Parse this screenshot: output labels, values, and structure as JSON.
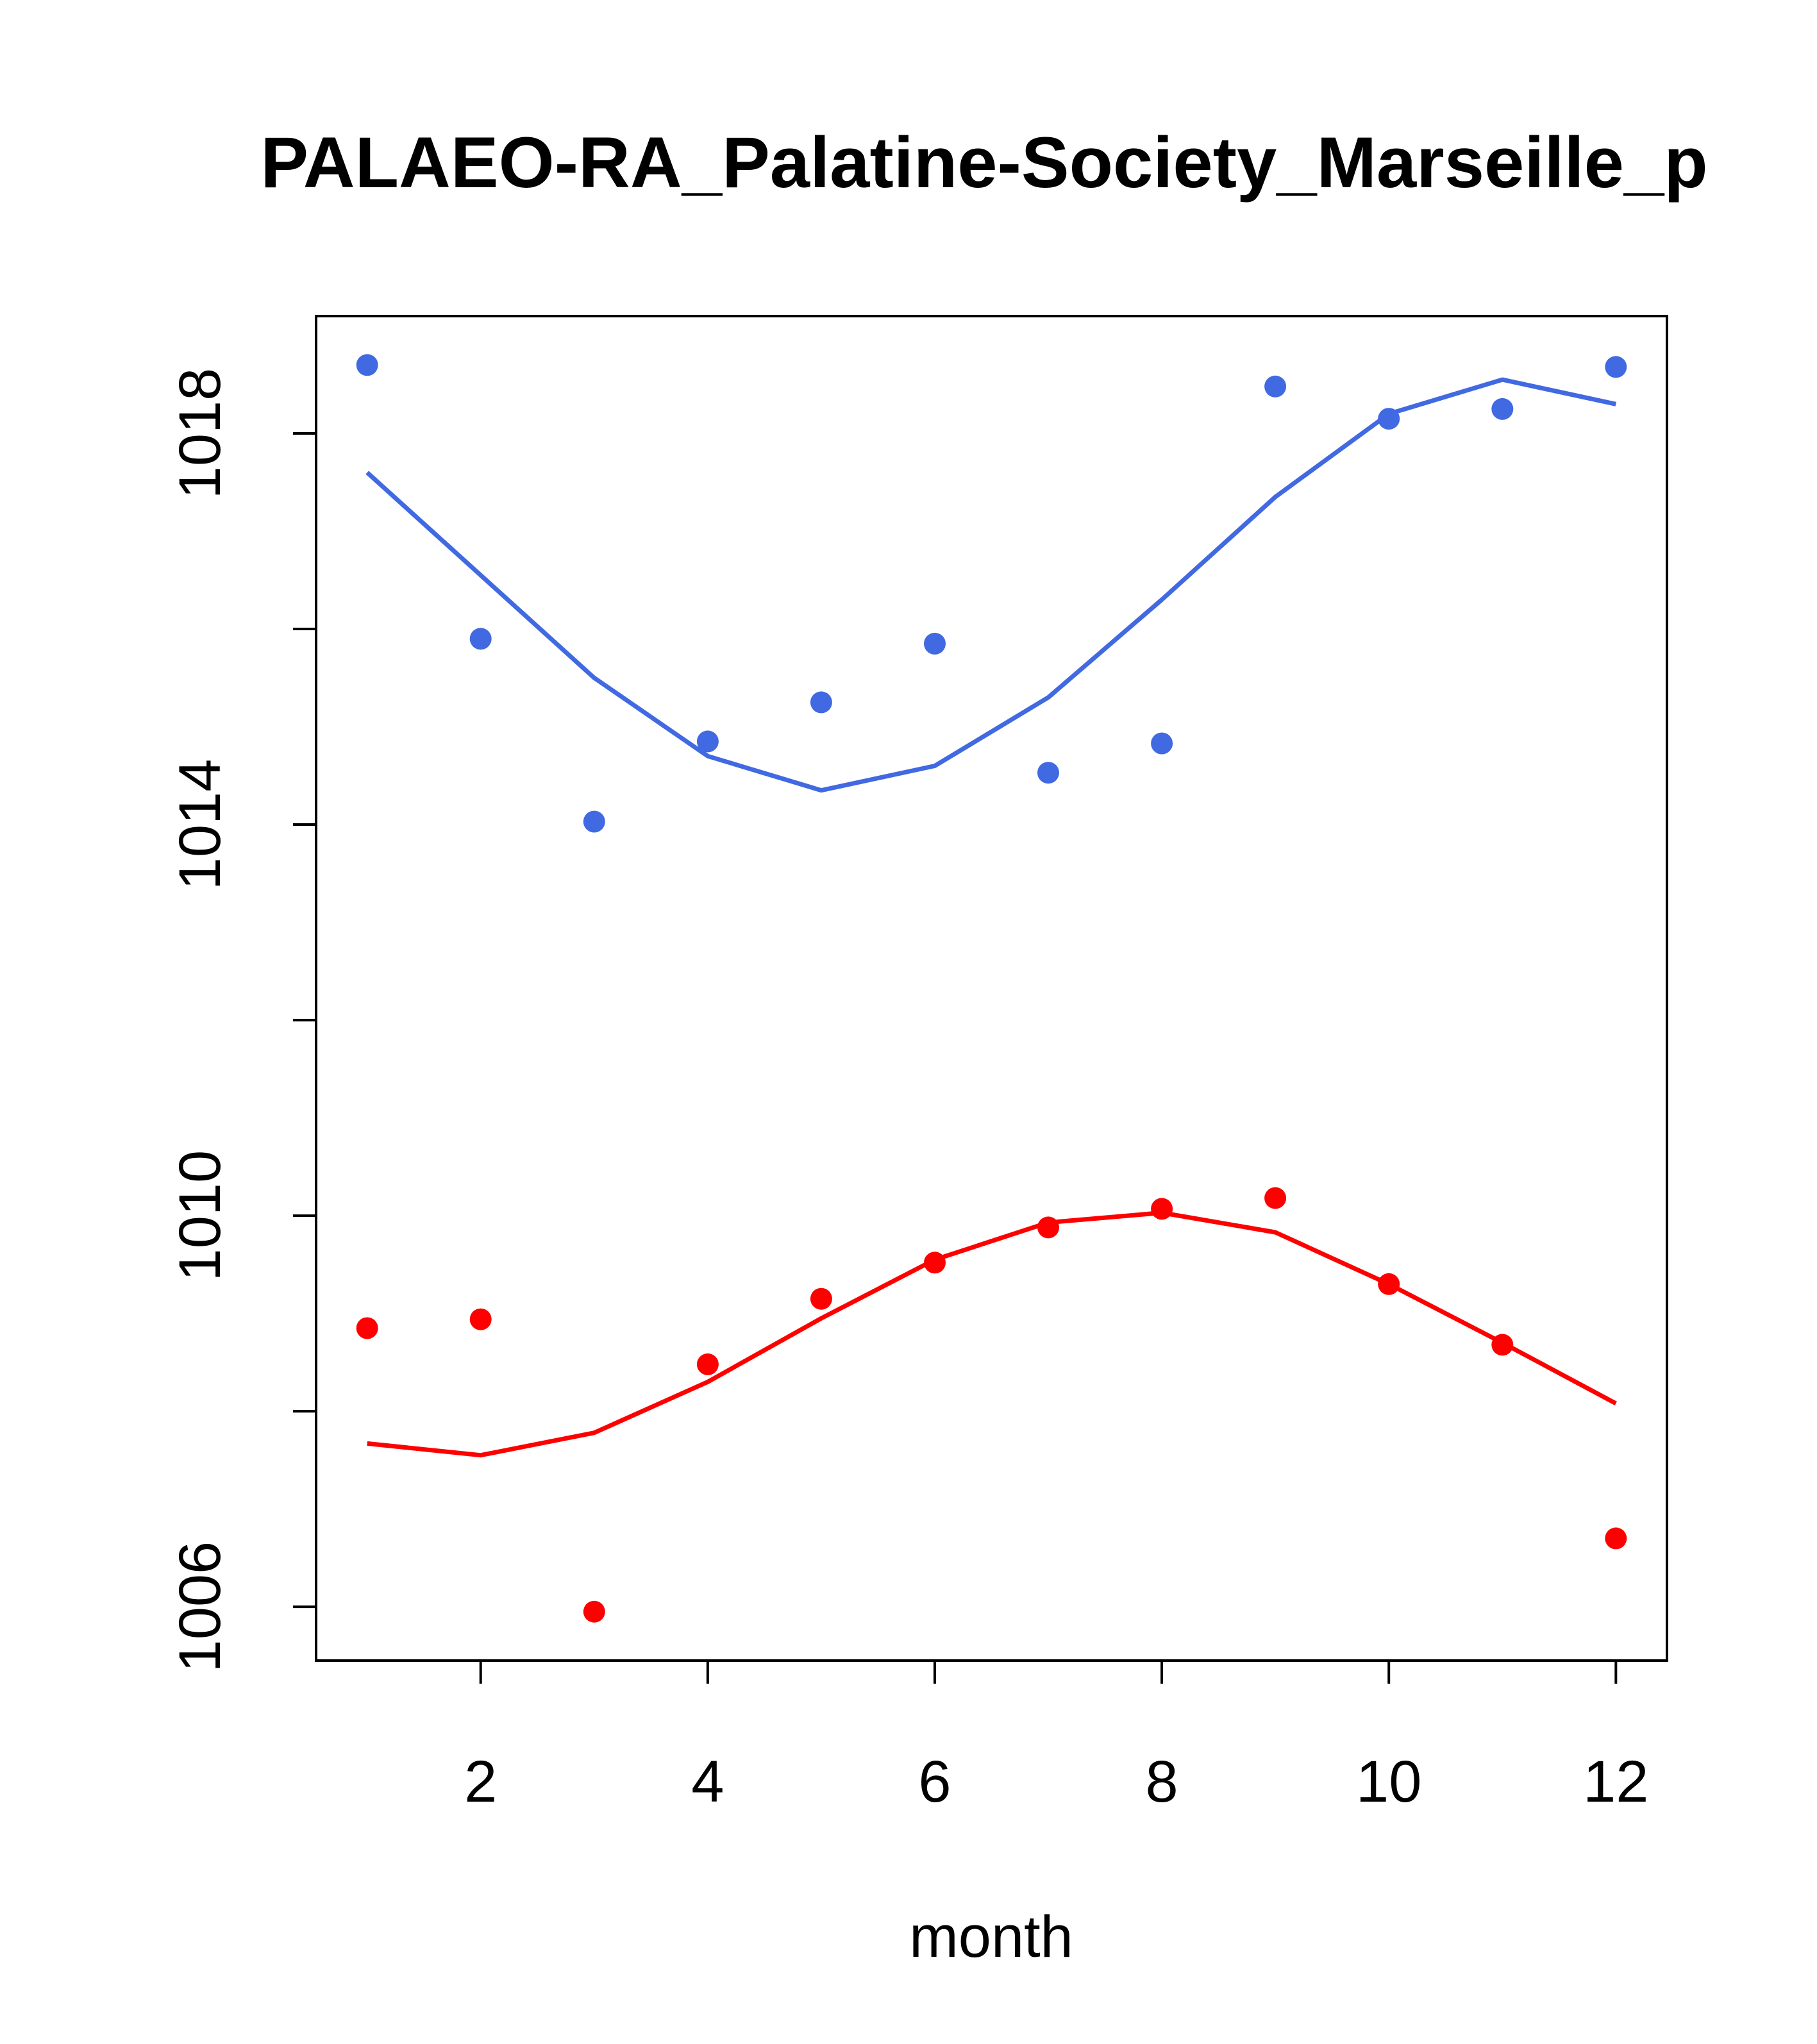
{
  "chart_data": {
    "type": "scatter",
    "title": "PALAEO-RA_Palatine-Society_Marseille_p",
    "xlabel": "month",
    "ylabel": "",
    "xlim": [
      0.55,
      12.45
    ],
    "ylim": [
      1005.45,
      1019.2
    ],
    "x_ticks": [
      2,
      4,
      6,
      8,
      10,
      12
    ],
    "x_tick_labels": [
      "2",
      "4",
      "6",
      "8",
      "10",
      "12"
    ],
    "y_ticks": [
      1006,
      1008,
      1010,
      1012,
      1014,
      1016,
      1018
    ],
    "y_tick_labels": [
      "1006",
      "",
      "1010",
      "",
      "1014",
      "",
      "1018"
    ],
    "x": [
      1,
      2,
      3,
      4,
      5,
      6,
      7,
      8,
      9,
      10,
      11,
      12
    ],
    "series": [
      {
        "name": "blue-points",
        "kind": "points",
        "color": "#4169E1",
        "values": [
          1018.7,
          1015.9,
          1014.03,
          1014.85,
          1015.25,
          1015.85,
          1014.53,
          1014.83,
          1018.48,
          1018.15,
          1018.25,
          1018.68
        ]
      },
      {
        "name": "blue-fit",
        "kind": "line",
        "color": "#4169E1",
        "values": [
          1017.6,
          1016.55,
          1015.5,
          1014.7,
          1014.35,
          1014.6,
          1015.3,
          1016.3,
          1017.35,
          1018.2,
          1018.55,
          1018.3
        ]
      },
      {
        "name": "red-points",
        "kind": "points",
        "color": "#FF0000",
        "values": [
          1008.85,
          1008.94,
          1005.95,
          1008.48,
          1009.15,
          1009.52,
          1009.88,
          1010.07,
          1010.18,
          1009.3,
          1008.68,
          1006.7
        ]
      },
      {
        "name": "red-fit",
        "kind": "line",
        "color": "#FF0000",
        "values": [
          1007.67,
          1007.55,
          1007.78,
          1008.3,
          1008.95,
          1009.55,
          1009.93,
          1010.03,
          1009.83,
          1009.3,
          1008.7,
          1008.08
        ]
      }
    ]
  }
}
